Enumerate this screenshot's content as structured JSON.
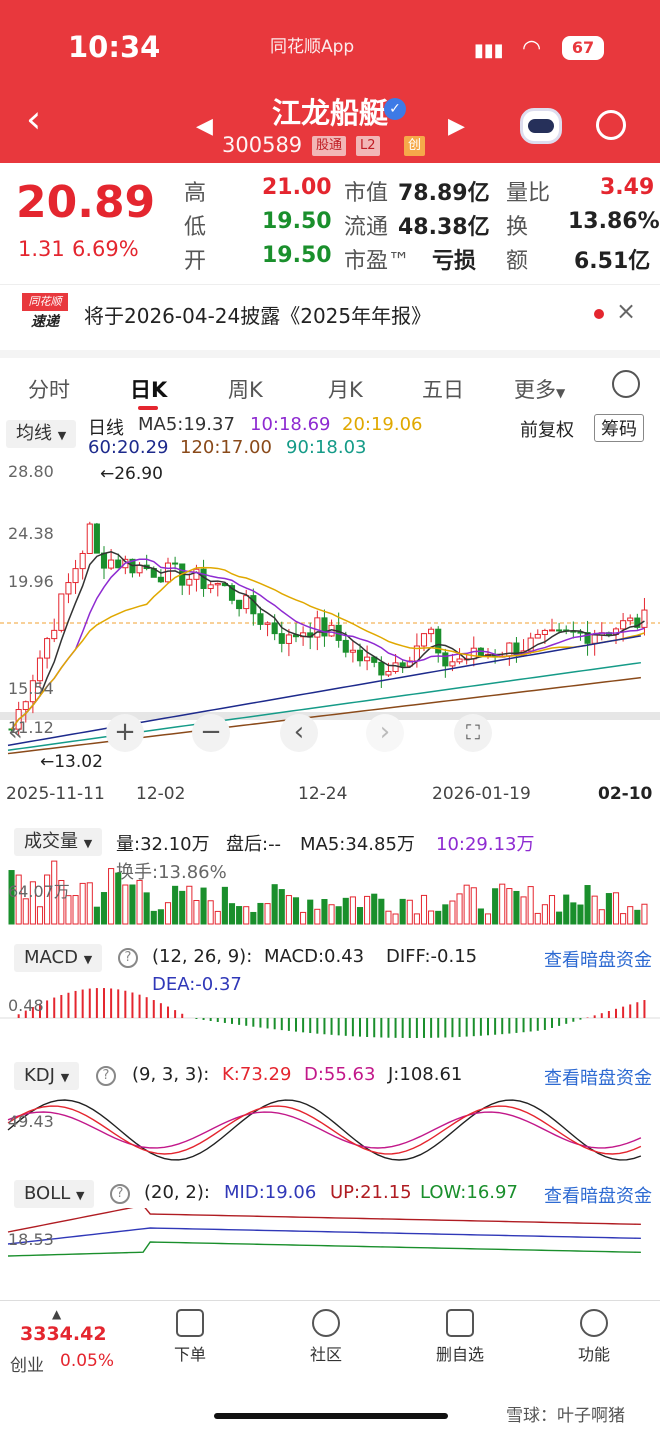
{
  "status": {
    "time": "10:34",
    "app": "同花顺App",
    "battery": "67"
  },
  "stock": {
    "name": "江龙船艇",
    "code": "300589",
    "tags": [
      "股通",
      "L2",
      "创"
    ]
  },
  "quote": {
    "price": "20.89",
    "change": "1.31",
    "pct": "6.69%",
    "high_label": "高",
    "high": "21.00",
    "low_label": "低",
    "low": "19.50",
    "open_label": "开",
    "open": "19.50",
    "mcap_label": "市值",
    "mcap": "78.89亿",
    "float_label": "流通",
    "float": "48.38亿",
    "pe_label": "市盈™",
    "pe": "亏损",
    "vr_label": "量比",
    "vr": "3.49",
    "turn_label": "换",
    "turn": "13.86%",
    "amt_label": "额",
    "amt": "6.51亿"
  },
  "notice": {
    "badge_top": "同花顺",
    "badge_bottom": "速递",
    "text": "将于2026-04-24披露《2025年年报》"
  },
  "tabs": [
    "分时",
    "日K",
    "周K",
    "月K",
    "五日",
    "更多"
  ],
  "kline": {
    "ma_select": "均线",
    "line_label": "日线",
    "ma5": "MA5:19.37",
    "ma10": "10:18.69",
    "ma20": "20:19.06",
    "ma60": "60:20.29",
    "ma120": "120:17.00",
    "ma90": "90:18.03",
    "adjust": "前复权",
    "chips": "筹码",
    "y_labels": [
      "28.80",
      "24.38",
      "19.96",
      "15.54",
      "11.12"
    ],
    "max_label": "←26.90",
    "min_label": "←13.02",
    "x_labels": [
      "2025-11-11",
      "12-02",
      "12-24",
      "2026-01-19",
      "02-10"
    ]
  },
  "volume": {
    "select": "成交量",
    "vol": "量:32.10万",
    "after": "盘后:--",
    "ma5": "MA5:34.85万",
    "ma10": "10:29.13万",
    "turnover": "换手:13.86%",
    "y_label": "64.07万"
  },
  "macd": {
    "select": "MACD",
    "params": "(12, 26, 9):",
    "macd": "MACD:0.43",
    "diff": "DIFF:-0.15",
    "dea": "DEA:-0.37",
    "y_label": "0.48",
    "link": "查看暗盘资金"
  },
  "kdj": {
    "select": "KDJ",
    "params": "(9, 3, 3):",
    "k": "K:73.29",
    "d": "D:55.63",
    "j": "J:108.61",
    "y_label": "49.43",
    "link": "查看暗盘资金"
  },
  "boll": {
    "select": "BOLL",
    "params": "(20, 2):",
    "mid": "MID:19.06",
    "up": "UP:21.15",
    "low": "LOW:16.97",
    "y_label": "18.53",
    "link": "查看暗盘资金"
  },
  "bottom": {
    "index_value": "3334.42",
    "index_name": "创业",
    "index_pct": "0.05%",
    "nav": [
      "下单",
      "社区",
      "删自选",
      "功能"
    ],
    "watermark": "雪球：叶子啊猪"
  },
  "colors": {
    "up": "#e4262f",
    "down": "#1a8f2c",
    "header": "#e8383d"
  }
}
